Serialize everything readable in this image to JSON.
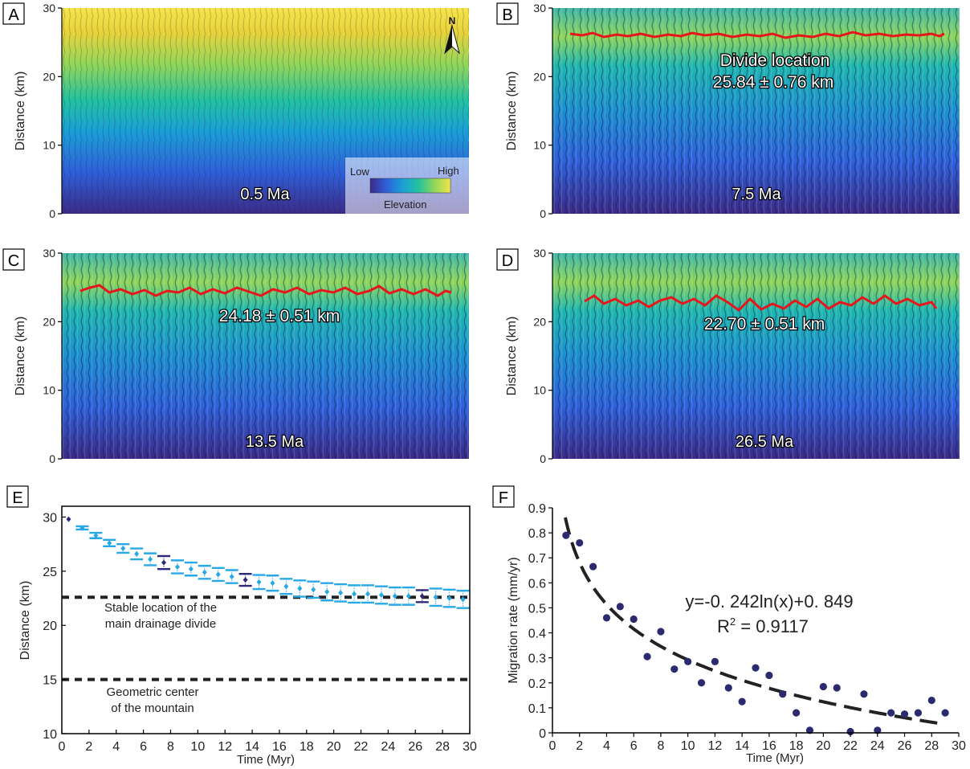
{
  "panels": {
    "A": {
      "letter": "A",
      "time_label": "0.5 Ma"
    },
    "B": {
      "letter": "B",
      "time_label": "7.5 Ma",
      "divide_title": "Divide location",
      "divide_value": "25.84 ± 0.76 km",
      "divide_km": 25.84
    },
    "C": {
      "letter": "C",
      "time_label": "13.5 Ma",
      "divide_value": "24.18 ± 0.51 km",
      "divide_km": 24.18
    },
    "D": {
      "letter": "D",
      "time_label": "26.5 Ma",
      "divide_value": "22.70 ± 0.51 km",
      "divide_km": 22.7
    },
    "E": {
      "letter": "E"
    },
    "F": {
      "letter": "F"
    }
  },
  "map_axes": {
    "ylabel": "Distance (km)",
    "ticks": [
      "0",
      "10",
      "20",
      "30"
    ],
    "ylim": [
      0,
      30
    ]
  },
  "north_arrow": {
    "label": "N",
    "icon": "north-arrow-icon"
  },
  "colorbar": {
    "low_label": "Low",
    "high_label": "High",
    "title": "Elevation",
    "colors": [
      "#3b2a86",
      "#2f5fd8",
      "#1a9fd6",
      "#22c2a0",
      "#8fd65a",
      "#e8d33a",
      "#f7e44a"
    ]
  },
  "chart_data": [
    {
      "type": "scatter",
      "panel": "E",
      "xlabel": "Time (Myr)",
      "ylabel": "Distance (km)",
      "xlim": [
        0,
        30
      ],
      "ylim": [
        10,
        31
      ],
      "xticks": [
        0,
        2,
        4,
        6,
        8,
        10,
        12,
        14,
        16,
        18,
        20,
        22,
        24,
        26,
        28,
        30
      ],
      "yticks": [
        10,
        15,
        20,
        25,
        30
      ],
      "colors": {
        "normal": "#29a8e6",
        "highlight": "#2e2a78",
        "dashed": "#222222"
      },
      "points": [
        {
          "x": 0.5,
          "y": 29.8,
          "err": 0.0,
          "highlight": true
        },
        {
          "x": 1.5,
          "y": 29.0,
          "err": 0.15,
          "highlight": false
        },
        {
          "x": 2.5,
          "y": 28.3,
          "err": 0.25,
          "highlight": false
        },
        {
          "x": 3.5,
          "y": 27.6,
          "err": 0.3,
          "highlight": false
        },
        {
          "x": 4.5,
          "y": 27.1,
          "err": 0.4,
          "highlight": false
        },
        {
          "x": 5.5,
          "y": 26.6,
          "err": 0.5,
          "highlight": false
        },
        {
          "x": 6.5,
          "y": 26.1,
          "err": 0.55,
          "highlight": false
        },
        {
          "x": 7.5,
          "y": 25.8,
          "err": 0.6,
          "highlight": true
        },
        {
          "x": 8.5,
          "y": 25.4,
          "err": 0.6,
          "highlight": false
        },
        {
          "x": 9.5,
          "y": 25.2,
          "err": 0.6,
          "highlight": false
        },
        {
          "x": 10.5,
          "y": 24.9,
          "err": 0.6,
          "highlight": false
        },
        {
          "x": 11.5,
          "y": 24.7,
          "err": 0.6,
          "highlight": false
        },
        {
          "x": 12.5,
          "y": 24.5,
          "err": 0.6,
          "highlight": false
        },
        {
          "x": 13.5,
          "y": 24.2,
          "err": 0.55,
          "highlight": true
        },
        {
          "x": 14.5,
          "y": 24.0,
          "err": 0.65,
          "highlight": false
        },
        {
          "x": 15.5,
          "y": 23.9,
          "err": 0.7,
          "highlight": false
        },
        {
          "x": 16.5,
          "y": 23.6,
          "err": 0.7,
          "highlight": false
        },
        {
          "x": 17.5,
          "y": 23.4,
          "err": 0.75,
          "highlight": false
        },
        {
          "x": 18.5,
          "y": 23.3,
          "err": 0.75,
          "highlight": false
        },
        {
          "x": 19.5,
          "y": 23.1,
          "err": 0.8,
          "highlight": false
        },
        {
          "x": 20.5,
          "y": 23.0,
          "err": 0.8,
          "highlight": false
        },
        {
          "x": 21.5,
          "y": 22.9,
          "err": 0.8,
          "highlight": false
        },
        {
          "x": 22.5,
          "y": 22.9,
          "err": 0.8,
          "highlight": false
        },
        {
          "x": 23.5,
          "y": 22.8,
          "err": 0.8,
          "highlight": false
        },
        {
          "x": 24.5,
          "y": 22.7,
          "err": 0.8,
          "highlight": false
        },
        {
          "x": 25.5,
          "y": 22.7,
          "err": 0.8,
          "highlight": false
        },
        {
          "x": 26.5,
          "y": 22.7,
          "err": 0.55,
          "highlight": true
        },
        {
          "x": 27.5,
          "y": 22.6,
          "err": 0.8,
          "highlight": false
        },
        {
          "x": 28.5,
          "y": 22.5,
          "err": 0.8,
          "highlight": false
        },
        {
          "x": 29.5,
          "y": 22.4,
          "err": 0.8,
          "highlight": false
        }
      ],
      "hlines": [
        {
          "y": 22.6,
          "label1": "Stable location of the",
          "label2": "main drainage divide"
        },
        {
          "y": 15.0,
          "label1": "Geometric center",
          "label2": "of the mountain"
        }
      ]
    },
    {
      "type": "scatter",
      "panel": "F",
      "xlabel": "Time (Myr)",
      "ylabel": "Migration rate (mm/yr)",
      "xlim": [
        0,
        30
      ],
      "ylim": [
        0,
        0.9
      ],
      "xticks": [
        0,
        2,
        4,
        6,
        8,
        10,
        12,
        14,
        16,
        18,
        20,
        22,
        24,
        26,
        28,
        30
      ],
      "yticks": [
        0,
        0.1,
        0.2,
        0.3,
        0.4,
        0.5,
        0.6,
        0.7,
        0.8,
        0.9
      ],
      "x": [
        1,
        2,
        3,
        4,
        5,
        6,
        7,
        8,
        9,
        10,
        11,
        12,
        13,
        14,
        15,
        16,
        17,
        18,
        19,
        20,
        21,
        22,
        23,
        24,
        25,
        26,
        27,
        28,
        29
      ],
      "y": [
        0.79,
        0.76,
        0.665,
        0.46,
        0.505,
        0.455,
        0.305,
        0.405,
        0.255,
        0.285,
        0.2,
        0.285,
        0.18,
        0.125,
        0.26,
        0.23,
        0.155,
        0.08,
        0.01,
        0.185,
        0.18,
        0.005,
        0.155,
        0.01,
        0.08,
        0.075,
        0.08,
        0.13,
        0.08
      ],
      "fit": {
        "a": -0.242,
        "b": 0.849
      },
      "equation": "y=-0. 242ln(x)+0. 849",
      "r2_prefix": "R",
      "r2_exp": "2",
      "r2_value": " = 0.9117",
      "point_color": "#2b2a6e"
    }
  ]
}
